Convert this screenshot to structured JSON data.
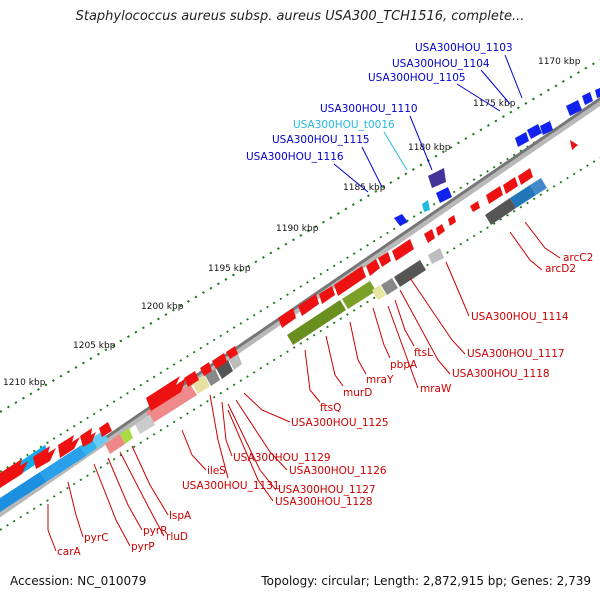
{
  "title": "Staphylococcus aureus subsp. aureus USA300_TCH1516, complete...",
  "accession": "Accession: NC_010079",
  "topology": "Topology: circular; Length: 2,872,915 bp; Genes: 2,739",
  "colors": {
    "backbone": "#888888",
    "forward_gene": "#ee1111",
    "reverse_gene": "#1122ee",
    "label_red": "#cc0000",
    "label_blue": "#0000cc",
    "label_cyan": "#22bbdd",
    "cog_green": "#6a8f1e",
    "cog_blue": "#2288dd",
    "cog_grey": "#555555"
  },
  "ticks": [
    {
      "label": "1170 kbp"
    },
    {
      "label": "1175 kbp"
    },
    {
      "label": "1180 kbp"
    },
    {
      "label": "1185 kbp"
    },
    {
      "label": "1190 kbp"
    },
    {
      "label": "1195 kbp"
    },
    {
      "label": "1200 kbp"
    },
    {
      "label": "1205 kbp"
    },
    {
      "label": "1210 kbp"
    }
  ],
  "labels_top": [
    {
      "text": "USA300HOU_1103",
      "color": "blue"
    },
    {
      "text": "USA300HOU_1104",
      "color": "blue"
    },
    {
      "text": "USA300HOU_1105",
      "color": "blue"
    },
    {
      "text": "USA300HOU_1110",
      "color": "blue"
    },
    {
      "text": "USA300HOU_t0016",
      "color": "cyan"
    },
    {
      "text": "USA300HOU_1115",
      "color": "blue"
    },
    {
      "text": "USA300HOU_1116",
      "color": "blue"
    }
  ],
  "labels_bottom": [
    {
      "text": "arcC2"
    },
    {
      "text": "arcD2"
    },
    {
      "text": "USA300HOU_1114"
    },
    {
      "text": "USA300HOU_1117"
    },
    {
      "text": "USA300HOU_1118"
    },
    {
      "text": "ftsL"
    },
    {
      "text": "mraW"
    },
    {
      "text": "pbpA"
    },
    {
      "text": "mraY"
    },
    {
      "text": "murD"
    },
    {
      "text": "ftsQ"
    },
    {
      "text": "USA300HOU_1125"
    },
    {
      "text": "USA300HOU_1126"
    },
    {
      "text": "USA300HOU_1129"
    },
    {
      "text": "USA300HOU_1127"
    },
    {
      "text": "USA300HOU_1128"
    },
    {
      "text": "USA300HOU_1131"
    },
    {
      "text": "ileS"
    },
    {
      "text": "lspA"
    },
    {
      "text": "rluD"
    },
    {
      "text": "pyrR"
    },
    {
      "text": "pyrP"
    },
    {
      "text": "pyrC"
    },
    {
      "text": "carA"
    }
  ]
}
